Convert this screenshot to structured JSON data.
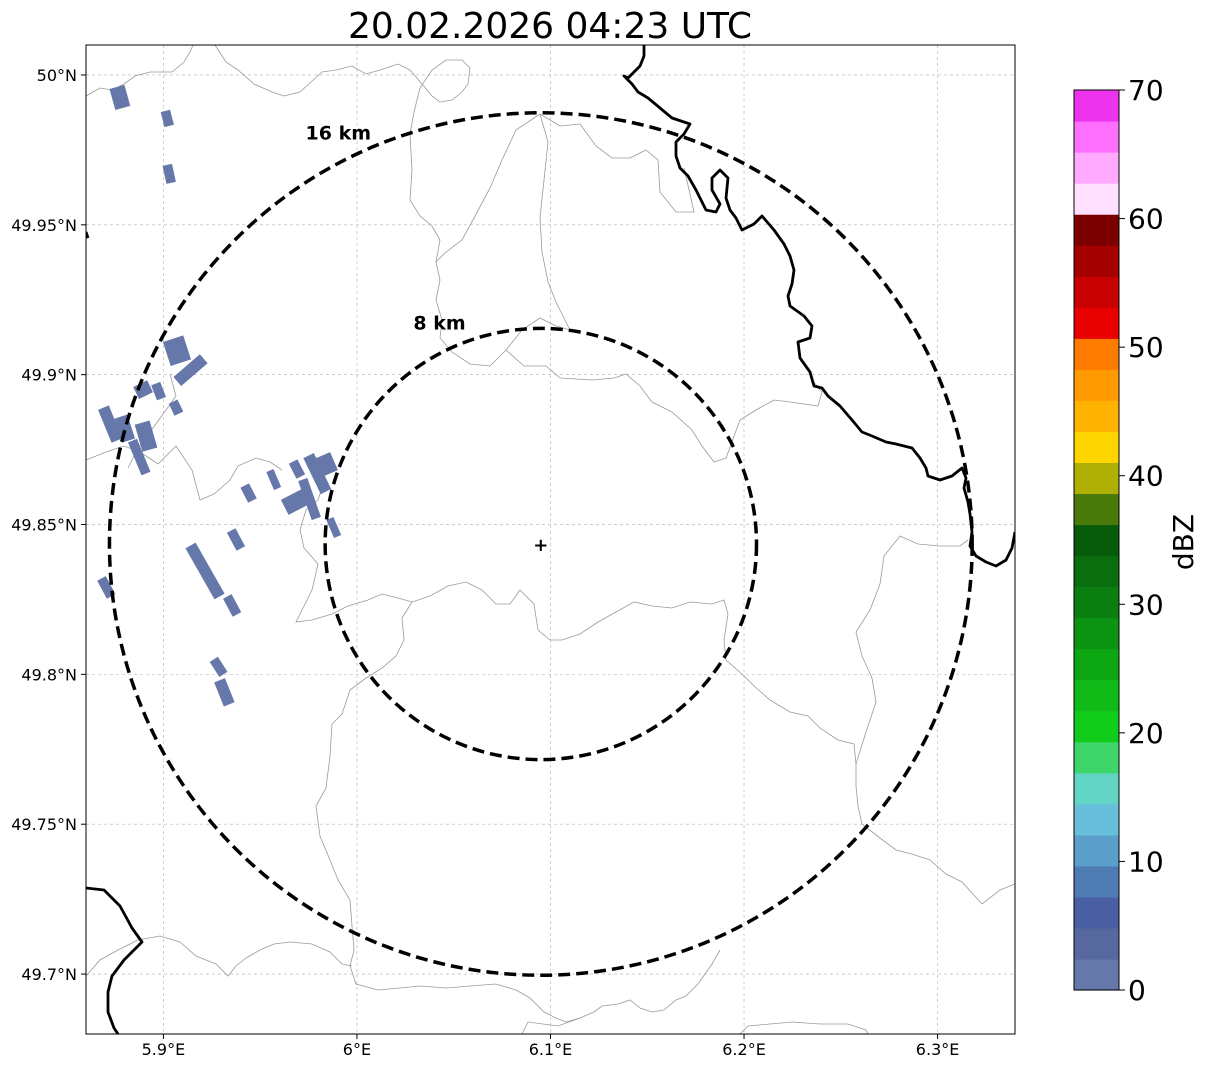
{
  "title": "20.02.2026 04:23 UTC",
  "map": {
    "lon_range": [
      5.86,
      6.34
    ],
    "lat_range": [
      49.68,
      50.01
    ],
    "x_ticks": [
      {
        "value": 5.9,
        "label": "5.9°E"
      },
      {
        "value": 6.0,
        "label": "6°E"
      },
      {
        "value": 6.1,
        "label": "6.1°E"
      },
      {
        "value": 6.2,
        "label": "6.2°E"
      },
      {
        "value": 6.3,
        "label": "6.3°E"
      }
    ],
    "y_ticks": [
      {
        "value": 50.0,
        "label": "50°N"
      },
      {
        "value": 49.95,
        "label": "49.95°N"
      },
      {
        "value": 49.9,
        "label": "49.9°N"
      },
      {
        "value": 49.85,
        "label": "49.85°N"
      },
      {
        "value": 49.8,
        "label": "49.8°N"
      },
      {
        "value": 49.75,
        "label": "49.75°N"
      },
      {
        "value": 49.7,
        "label": "49.7°N"
      }
    ],
    "grid": true,
    "radar_center": {
      "lon": 6.095,
      "lat": 49.8435,
      "marker": "+"
    },
    "range_rings": [
      {
        "radius_km": 8,
        "label": "8 km"
      },
      {
        "radius_km": 16,
        "label": "16 km"
      }
    ],
    "echo_color": "#6677aa",
    "echoes": [
      {
        "lon": 5.876,
        "lat": 49.996,
        "dlon": 0.003,
        "dlat": -0.007,
        "w": 0.008
      },
      {
        "lon": 5.901,
        "lat": 49.988,
        "dlon": 0.002,
        "dlat": -0.005,
        "w": 0.005
      },
      {
        "lon": 5.902,
        "lat": 49.97,
        "dlon": 0.002,
        "dlat": -0.006,
        "w": 0.005
      },
      {
        "lon": 5.905,
        "lat": 49.912,
        "dlon": 0.004,
        "dlat": -0.008,
        "w": 0.011
      },
      {
        "lon": 5.912,
        "lat": 49.903,
        "dlon": 0.004,
        "dlat": -0.003,
        "w": 0.018
      },
      {
        "lon": 5.888,
        "lat": 49.897,
        "dlon": 0.003,
        "dlat": -0.004,
        "w": 0.008
      },
      {
        "lon": 5.896,
        "lat": 49.897,
        "dlon": 0.003,
        "dlat": -0.005,
        "w": 0.005
      },
      {
        "lon": 5.905,
        "lat": 49.891,
        "dlon": 0.003,
        "dlat": -0.004,
        "w": 0.005
      },
      {
        "lon": 5.869,
        "lat": 49.889,
        "dlon": 0.007,
        "dlat": -0.011,
        "w": 0.006
      },
      {
        "lon": 5.878,
        "lat": 49.886,
        "dlon": 0.004,
        "dlat": -0.008,
        "w": 0.007
      },
      {
        "lon": 5.889,
        "lat": 49.884,
        "dlon": 0.004,
        "dlat": -0.009,
        "w": 0.008
      },
      {
        "lon": 5.884,
        "lat": 49.878,
        "dlon": 0.007,
        "dlat": -0.011,
        "w": 0.005
      },
      {
        "lon": 5.975,
        "lat": 49.873,
        "dlon": 0.009,
        "dlat": -0.012,
        "w": 0.006
      },
      {
        "lon": 5.982,
        "lat": 49.873,
        "dlon": 0.004,
        "dlat": -0.006,
        "w": 0.009
      },
      {
        "lon": 5.967,
        "lat": 49.871,
        "dlon": 0.004,
        "dlat": -0.005,
        "w": 0.005
      },
      {
        "lon": 5.972,
        "lat": 49.865,
        "dlon": 0.007,
        "dlat": -0.013,
        "w": 0.005
      },
      {
        "lon": 5.955,
        "lat": 49.868,
        "dlon": 0.004,
        "dlat": -0.006,
        "w": 0.004
      },
      {
        "lon": 5.966,
        "lat": 49.86,
        "dlon": 0.004,
        "dlat": -0.005,
        "w": 0.012
      },
      {
        "lon": 5.942,
        "lat": 49.863,
        "dlon": 0.004,
        "dlat": -0.005,
        "w": 0.005
      },
      {
        "lon": 5.986,
        "lat": 49.852,
        "dlon": 0.004,
        "dlat": -0.006,
        "w": 0.004
      },
      {
        "lon": 5.935,
        "lat": 49.848,
        "dlon": 0.005,
        "dlat": -0.006,
        "w": 0.005
      },
      {
        "lon": 5.914,
        "lat": 49.843,
        "dlon": 0.015,
        "dlat": -0.017,
        "w": 0.006
      },
      {
        "lon": 5.933,
        "lat": 49.826,
        "dlon": 0.005,
        "dlat": -0.006,
        "w": 0.005
      },
      {
        "lon": 5.868,
        "lat": 49.832,
        "dlon": 0.005,
        "dlat": -0.006,
        "w": 0.005
      },
      {
        "lon": 5.926,
        "lat": 49.805,
        "dlon": 0.005,
        "dlat": -0.005,
        "w": 0.005
      },
      {
        "lon": 5.929,
        "lat": 49.798,
        "dlon": 0.005,
        "dlat": -0.008,
        "w": 0.006
      }
    ]
  },
  "colorbar": {
    "label": "dBZ",
    "min": 0,
    "max": 70,
    "tick_values": [
      0,
      10,
      20,
      30,
      40,
      50,
      60,
      70
    ],
    "tick_labels": [
      "0",
      "10",
      "20",
      "30",
      "40",
      "50",
      "60",
      "70"
    ],
    "colors": [
      "#6677aa",
      "#57689f",
      "#4a5fa3",
      "#4f7bb3",
      "#5a9ec9",
      "#67bfdc",
      "#62d4c4",
      "#3ed66a",
      "#12cc1b",
      "#10bb17",
      "#0ea714",
      "#0b9312",
      "#0a7f10",
      "#0a6d0e",
      "#075c0c",
      "#4a7a0a",
      "#aeb006",
      "#ffd500",
      "#ffb300",
      "#ff9b00",
      "#ff7b00",
      "#e80000",
      "#c90000",
      "#a40000",
      "#7c0000",
      "#ffe0ff",
      "#ffaaff",
      "#ff70ff",
      "#ee33ee"
    ]
  }
}
